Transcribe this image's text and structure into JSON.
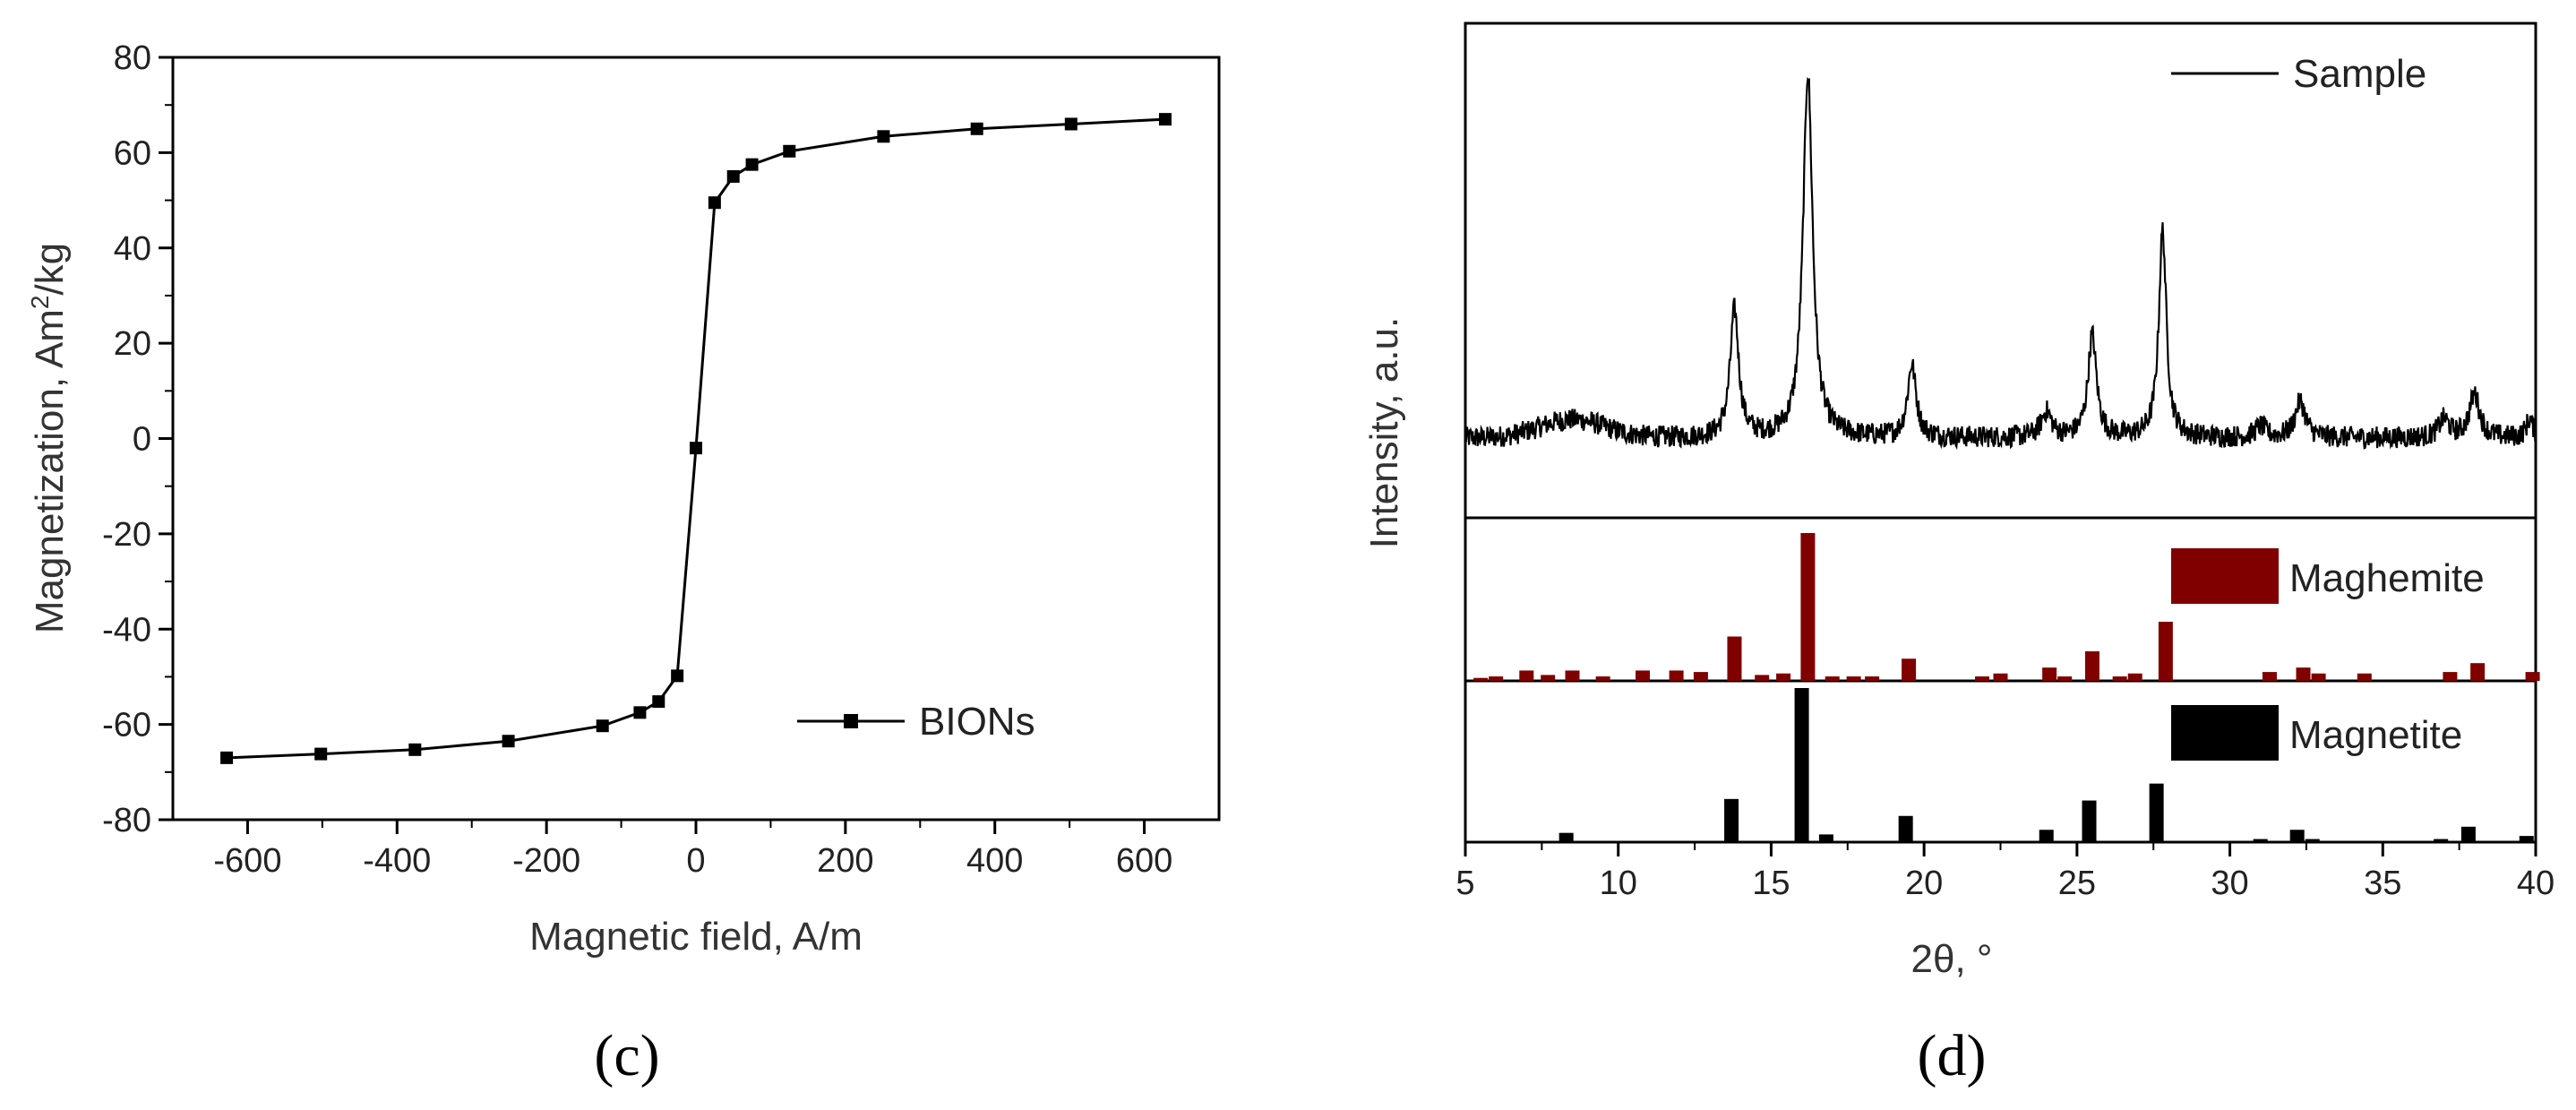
{
  "chart_data": [
    {
      "type": "line",
      "panel_label": "(c)",
      "xlabel": "Magnetic field, A/m",
      "ylabel_main": "Magnetization, Am",
      "ylabel_sup": "2",
      "ylabel_tail": "/kg",
      "xlim": [
        -700,
        700
      ],
      "ylim": [
        -80,
        80
      ],
      "xticks": [
        -600,
        -400,
        -200,
        0,
        200,
        400,
        600
      ],
      "xtick_labels": [
        "-600",
        "-400",
        "-200",
        "0",
        "200",
        "400",
        "600"
      ],
      "yticks": [
        -80,
        -60,
        -40,
        -20,
        0,
        20,
        40,
        60,
        80
      ],
      "ytick_labels": [
        "-80",
        "-60",
        "-40",
        "-20",
        "0",
        "20",
        "40",
        "60",
        "80"
      ],
      "legend_position": "bottom-right",
      "series": [
        {
          "name": "BIONs",
          "color": "#000000",
          "marker": "square",
          "points": [
            {
              "x": -628,
              "y": -67
            },
            {
              "x": -502,
              "y": -66.2
            },
            {
              "x": -376,
              "y": -65.3
            },
            {
              "x": -251,
              "y": -63.5
            },
            {
              "x": -125,
              "y": -60.3
            },
            {
              "x": -75,
              "y": -57.5
            },
            {
              "x": -50,
              "y": -55.2
            },
            {
              "x": -25,
              "y": -49.8
            },
            {
              "x": 0,
              "y": -2
            },
            {
              "x": 25,
              "y": 49.5
            },
            {
              "x": 50,
              "y": 55
            },
            {
              "x": 75,
              "y": 57.5
            },
            {
              "x": 125,
              "y": 60.3
            },
            {
              "x": 251,
              "y": 63.4
            },
            {
              "x": 376,
              "y": 65
            },
            {
              "x": 502,
              "y": 66
            },
            {
              "x": 628,
              "y": 67
            }
          ]
        }
      ]
    },
    {
      "type": "line",
      "panel_label": "(d)",
      "xlabel": "2θ, °",
      "ylabel": "Intensity, a.u.",
      "xlim": [
        5,
        40
      ],
      "xticks": [
        5,
        10,
        15,
        20,
        25,
        30,
        35,
        40
      ],
      "xtick_labels": [
        "5",
        "10",
        "15",
        "20",
        "25",
        "30",
        "35",
        "40"
      ],
      "sample": {
        "name": "Sample",
        "color": "#000000",
        "baseline": 0.15,
        "noise": 0.03,
        "broad_hump": {
          "x": 8.5,
          "height": 0.05,
          "width": 1.5
        },
        "peaks": [
          {
            "x": 13.8,
            "height": 0.35,
            "width": 0.25
          },
          {
            "x": 16.2,
            "height": 1.0,
            "width": 0.28
          },
          {
            "x": 19.6,
            "height": 0.2,
            "width": 0.25
          },
          {
            "x": 24.0,
            "height": 0.07,
            "width": 0.3
          },
          {
            "x": 25.5,
            "height": 0.28,
            "width": 0.25
          },
          {
            "x": 27.8,
            "height": 0.57,
            "width": 0.22
          },
          {
            "x": 31.0,
            "height": 0.03,
            "width": 0.3
          },
          {
            "x": 32.3,
            "height": 0.1,
            "width": 0.3
          },
          {
            "x": 37.0,
            "height": 0.05,
            "width": 0.3
          },
          {
            "x": 38.0,
            "height": 0.12,
            "width": 0.3
          },
          {
            "x": 39.8,
            "height": 0.05,
            "width": 0.2
          }
        ]
      },
      "maghemite": {
        "name": "Maghemite",
        "color": "#800000",
        "bars": [
          {
            "x": 5.5,
            "h": 0.02
          },
          {
            "x": 6.0,
            "h": 0.03
          },
          {
            "x": 7.0,
            "h": 0.07
          },
          {
            "x": 7.7,
            "h": 0.04
          },
          {
            "x": 8.5,
            "h": 0.07
          },
          {
            "x": 9.5,
            "h": 0.03
          },
          {
            "x": 10.8,
            "h": 0.07
          },
          {
            "x": 11.9,
            "h": 0.07
          },
          {
            "x": 12.7,
            "h": 0.06
          },
          {
            "x": 13.8,
            "h": 0.3
          },
          {
            "x": 14.7,
            "h": 0.04
          },
          {
            "x": 15.4,
            "h": 0.05
          },
          {
            "x": 16.2,
            "h": 1.0
          },
          {
            "x": 17.0,
            "h": 0.03
          },
          {
            "x": 17.7,
            "h": 0.03
          },
          {
            "x": 18.3,
            "h": 0.03
          },
          {
            "x": 19.5,
            "h": 0.15
          },
          {
            "x": 21.9,
            "h": 0.03
          },
          {
            "x": 22.5,
            "h": 0.05
          },
          {
            "x": 24.1,
            "h": 0.09
          },
          {
            "x": 24.6,
            "h": 0.03
          },
          {
            "x": 25.5,
            "h": 0.2
          },
          {
            "x": 26.4,
            "h": 0.03
          },
          {
            "x": 26.9,
            "h": 0.05
          },
          {
            "x": 27.9,
            "h": 0.4
          },
          {
            "x": 31.3,
            "h": 0.06
          },
          {
            "x": 32.4,
            "h": 0.09
          },
          {
            "x": 32.9,
            "h": 0.05
          },
          {
            "x": 34.4,
            "h": 0.05
          },
          {
            "x": 37.2,
            "h": 0.06
          },
          {
            "x": 38.1,
            "h": 0.12
          },
          {
            "x": 39.9,
            "h": 0.06
          }
        ]
      },
      "magnetite": {
        "name": "Magnetite",
        "color": "#000000",
        "bars": [
          {
            "x": 8.3,
            "h": 0.06
          },
          {
            "x": 13.7,
            "h": 0.28
          },
          {
            "x": 16.0,
            "h": 1.0
          },
          {
            "x": 16.8,
            "h": 0.05
          },
          {
            "x": 19.4,
            "h": 0.17
          },
          {
            "x": 24.0,
            "h": 0.08
          },
          {
            "x": 25.4,
            "h": 0.27
          },
          {
            "x": 27.6,
            "h": 0.38
          },
          {
            "x": 31.0,
            "h": 0.02
          },
          {
            "x": 32.2,
            "h": 0.08
          },
          {
            "x": 32.7,
            "h": 0.02
          },
          {
            "x": 36.9,
            "h": 0.02
          },
          {
            "x": 37.8,
            "h": 0.1
          },
          {
            "x": 39.7,
            "h": 0.04
          }
        ]
      }
    }
  ]
}
